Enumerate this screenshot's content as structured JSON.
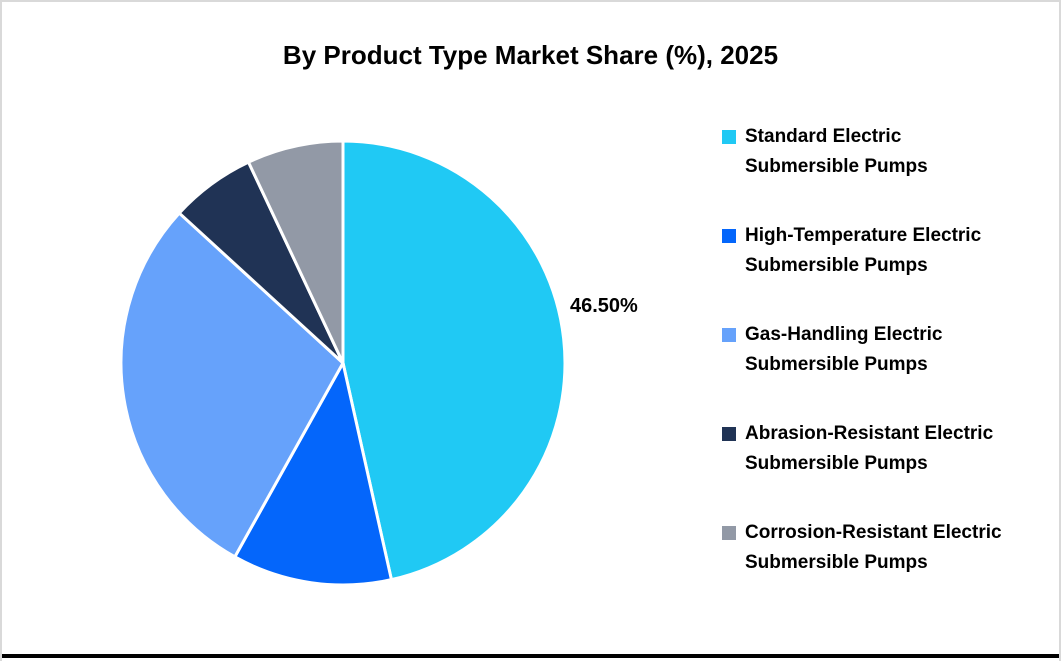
{
  "chart_data": {
    "type": "pie",
    "title": "By Product Type Market Share (%), 2025",
    "unit": "%",
    "legend_position": "right",
    "start_angle_deg": 0,
    "direction": "clockwise",
    "series": [
      {
        "name": "Standard Electric Submersible Pumps",
        "lines": [
          "Standard Electric",
          "Submersible Pumps"
        ],
        "value": 46.5,
        "data_label": "46.50%",
        "color": "#20C9F4"
      },
      {
        "name": "High-Temperature Electric Submersible Pumps",
        "lines": [
          "High-Temperature Electric",
          "Submersible Pumps"
        ],
        "value": 11.6,
        "data_label": "",
        "color": "#0466FB"
      },
      {
        "name": "Gas-Handling Electric Submersible Pumps",
        "lines": [
          "Gas-Handling Electric",
          "Submersible Pumps"
        ],
        "value": 28.7,
        "data_label": "",
        "color": "#66A2FB"
      },
      {
        "name": "Abrasion-Resistant Electric Submersible Pumps",
        "lines": [
          "Abrasion-Resistant Electric",
          "Submersible Pumps"
        ],
        "value": 6.2,
        "data_label": "",
        "color": "#203355"
      },
      {
        "name": "Corrosion-Resistant Electric Submersible Pumps",
        "lines": [
          "Corrosion-Resistant Electric",
          "Submersible Pumps"
        ],
        "value": 7.0,
        "data_label": "",
        "color": "#9299A6"
      }
    ],
    "colors": {
      "background": "#FFFFFF",
      "frame_border": "#D9D9D9",
      "bottom_bar": "#000000",
      "slice_separator": "#FFFFFF",
      "text": "#000000"
    }
  }
}
